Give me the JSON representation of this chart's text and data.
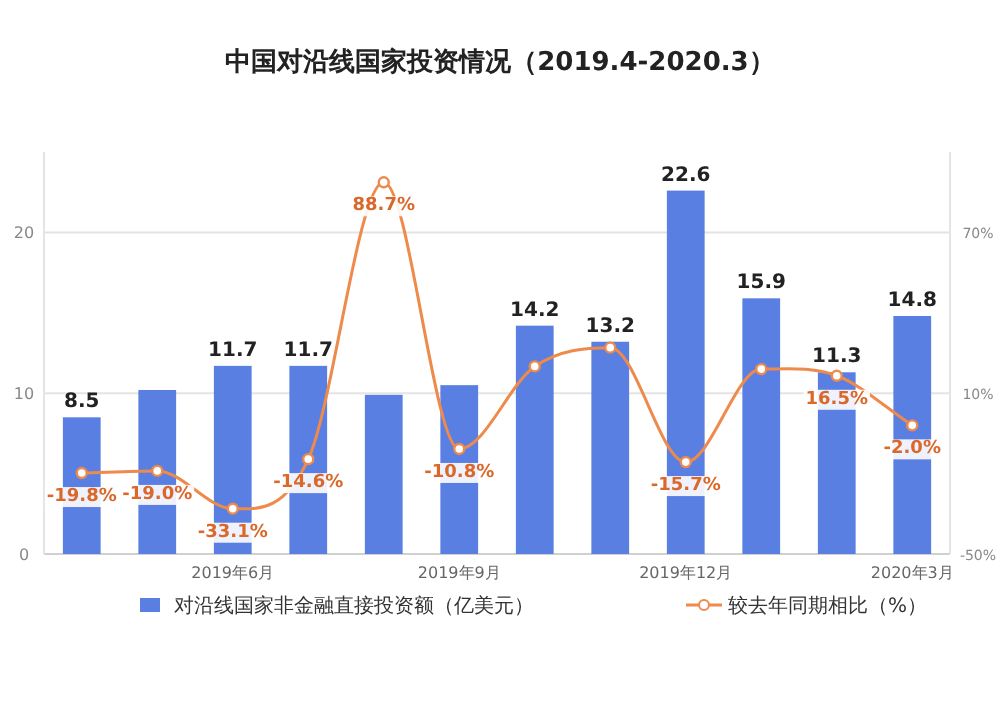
{
  "chart_data": {
    "type": "bar",
    "title": "中国对沿线国家投资情况（2019.4-2020.3）",
    "categories": [
      null,
      null,
      "2019年6月",
      null,
      null,
      "2019年9月",
      null,
      null,
      "2019年12月",
      null,
      null,
      "2020年3月"
    ],
    "series": [
      {
        "name": "对沿线国家非金融直接投资额（亿美元）",
        "color": "#5a7fe3",
        "values": [
          8.5,
          10.2,
          11.7,
          11.7,
          9.9,
          10.5,
          14.2,
          13.2,
          22.6,
          15.9,
          11.3,
          14.8
        ],
        "value_labels": [
          "8.5",
          null,
          "11.7",
          "11.7",
          null,
          null,
          "14.2",
          "13.2",
          "22.6",
          "15.9",
          "11.3",
          "14.8"
        ]
      },
      {
        "name": "较去年同期相比（%）",
        "type": "line",
        "axis": "y2",
        "color": "#ed8a4c",
        "marker": "circle",
        "values": [
          -19.8,
          -19.0,
          -33.1,
          -14.6,
          88.7,
          -10.8,
          20,
          27,
          -15.7,
          19,
          16.5,
          -2.0
        ],
        "value_labels": [
          "-19.8%",
          "-19.0%",
          "-33.1%",
          "-14.6%",
          "88.7%",
          "-10.8%",
          null,
          null,
          "-15.7%",
          null,
          "16.5%",
          "-2.0%"
        ]
      }
    ],
    "ylim": [
      0,
      25
    ],
    "yticks": [
      0,
      10,
      20
    ],
    "y2lim": [
      -50,
      100
    ],
    "y2ticks": [
      {
        "value": -50,
        "label": "-50%"
      },
      {
        "value": 10,
        "label": "10%"
      },
      {
        "value": 70,
        "label": "70%"
      }
    ],
    "grid": "y",
    "legend": "bottom"
  }
}
